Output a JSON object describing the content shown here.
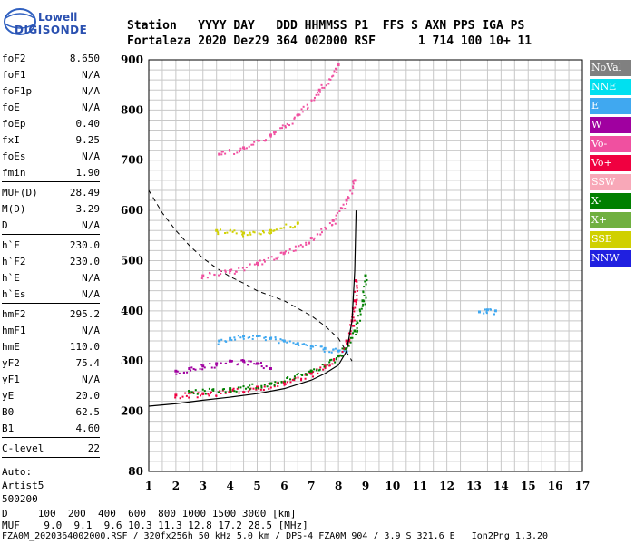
{
  "logo": {
    "brand_top": "Lowell",
    "brand_bottom": "DIGISONDE"
  },
  "header": {
    "labels": "Station   YYYY DAY   DDD HHMMSS P1  FFS S AXN PPS IGA PS",
    "values": "Fortaleza 2020 Dez29 364 002000 RSF      1 714 100 10+ 11"
  },
  "params": [
    [
      {
        "n": "foF2",
        "v": "8.650"
      },
      {
        "n": "foF1",
        "v": "N/A"
      },
      {
        "n": "foF1p",
        "v": "N/A"
      },
      {
        "n": "foE",
        "v": "N/A"
      },
      {
        "n": "foEp",
        "v": "0.40"
      },
      {
        "n": "fxI",
        "v": "9.25"
      },
      {
        "n": "foEs",
        "v": "N/A"
      },
      {
        "n": "fmin",
        "v": "1.90"
      }
    ],
    [
      {
        "n": "MUF(D)",
        "v": "28.49"
      },
      {
        "n": "M(D)",
        "v": "3.29"
      },
      {
        "n": "D",
        "v": "N/A"
      }
    ],
    [
      {
        "n": "h`F",
        "v": "230.0"
      },
      {
        "n": "h`F2",
        "v": "230.0"
      },
      {
        "n": "h`E",
        "v": "N/A"
      },
      {
        "n": "h`Es",
        "v": "N/A"
      }
    ],
    [
      {
        "n": "hmF2",
        "v": "295.2"
      },
      {
        "n": "hmF1",
        "v": "N/A"
      },
      {
        "n": "hmE",
        "v": "110.0"
      },
      {
        "n": "yF2",
        "v": "75.4"
      },
      {
        "n": "yF1",
        "v": "N/A"
      },
      {
        "n": "yE",
        "v": "20.0"
      },
      {
        "n": "B0",
        "v": "62.5"
      },
      {
        "n": "B1",
        "v": "4.60"
      }
    ],
    [
      {
        "n": "C-level",
        "v": "22"
      }
    ]
  ],
  "autoscale": [
    "Auto:",
    "Artist5",
    "500200"
  ],
  "legend": [
    {
      "label": "NoVal",
      "color": "#808080"
    },
    {
      "label": "NNE",
      "color": "#00e0f0"
    },
    {
      "label": "E",
      "color": "#40a8f0"
    },
    {
      "label": "W",
      "color": "#a000a0"
    },
    {
      "label": "Vo-",
      "color": "#f050a0"
    },
    {
      "label": "Vo+",
      "color": "#f00040"
    },
    {
      "label": "SSW",
      "color": "#f8a8b8"
    },
    {
      "label": "X-",
      "color": "#008000"
    },
    {
      "label": "X+",
      "color": "#70b040"
    },
    {
      "label": "SSE",
      "color": "#d0d000"
    },
    {
      "label": "NNW",
      "color": "#2020e0"
    }
  ],
  "footer": {
    "d_row": "D     100  200  400  600  800 1000 1500 3000 [km]",
    "muf_row": "MUF    9.0  9.1  9.6 10.3 11.3 12.8 17.2 28.5 [MHz]",
    "filename": "FZA0M_2020364002000.RSF / 320fx256h 50 kHz 5.0 km / DPS-4 FZA0M 904 / 3.9 S 321.6 E   Ion2Png 1.3.20"
  },
  "chart_data": {
    "type": "scatter",
    "xlim": [
      1,
      17
    ],
    "ylim": [
      80,
      900
    ],
    "x_ticks": [
      "1",
      "2",
      "3",
      "4",
      "5",
      "6",
      "7",
      "8",
      "9",
      "10",
      "11",
      "12",
      "13",
      "14",
      "15",
      "16",
      "17"
    ],
    "y_ticks": [
      "80",
      "200",
      "300",
      "400",
      "500",
      "600",
      "700",
      "800",
      "900"
    ],
    "grid": true,
    "traces": [
      {
        "name": "E",
        "x": [
          3.6,
          4.0,
          4.5,
          5.0,
          5.5,
          6.0,
          6.5,
          7.0,
          7.5,
          8.0,
          8.3
        ],
        "y": [
          340,
          345,
          350,
          350,
          345,
          340,
          335,
          330,
          325,
          320,
          318
        ]
      },
      {
        "name": "W",
        "x": [
          2.0,
          2.5,
          3.0,
          3.5,
          4.0,
          4.5,
          5.0,
          5.5
        ],
        "y": [
          280,
          285,
          290,
          295,
          300,
          300,
          295,
          285
        ]
      },
      {
        "name": "Vo+",
        "x": [
          2.0,
          3.0,
          4.0,
          5.0,
          6.0,
          7.0,
          7.5,
          8.0,
          8.3,
          8.5,
          8.6,
          8.65
        ],
        "y": [
          232,
          235,
          240,
          248,
          258,
          275,
          290,
          310,
          340,
          380,
          420,
          460
        ]
      },
      {
        "name": "X-",
        "x": [
          2.5,
          4.0,
          5.5,
          7.0,
          8.0,
          8.6,
          8.9,
          9.0
        ],
        "y": [
          238,
          245,
          255,
          280,
          310,
          360,
          420,
          470
        ]
      },
      {
        "name": "Vo-",
        "x": [
          3.0,
          4.0,
          5.0,
          6.0,
          7.0,
          7.8,
          8.3,
          8.6
        ],
        "y": [
          470,
          480,
          495,
          515,
          545,
          580,
          620,
          660
        ]
      },
      {
        "name": "SSE",
        "x": [
          3.5,
          4.5,
          5.5,
          6.5
        ],
        "y": [
          560,
          555,
          560,
          575
        ]
      },
      {
        "name": "Vo- (3-hop)",
        "x": [
          3.6,
          4.5,
          5.5,
          6.5,
          7.3,
          8.0
        ],
        "y": [
          712,
          725,
          750,
          790,
          840,
          890
        ]
      },
      {
        "name": "E (isolated)",
        "x": [
          13.2,
          13.5,
          13.8
        ],
        "y": [
          398,
          402,
          400
        ]
      }
    ],
    "profile": {
      "x": [
        1.0,
        2.0,
        3.0,
        4.0,
        5.0,
        6.0,
        7.0,
        7.5,
        8.0,
        8.3,
        8.5,
        8.6,
        8.65
      ],
      "y": [
        210,
        215,
        222,
        228,
        235,
        245,
        262,
        275,
        292,
        320,
        380,
        480,
        600
      ]
    },
    "muf_curve": {
      "x": [
        1.0,
        1.5,
        2.0,
        2.5,
        3.0,
        3.5,
        4.0,
        4.5,
        5.0,
        5.5,
        6.0,
        6.5,
        7.0,
        7.5,
        8.0,
        8.5
      ],
      "y": [
        640,
        595,
        560,
        530,
        505,
        485,
        468,
        455,
        440,
        430,
        420,
        405,
        390,
        370,
        345,
        300
      ]
    }
  }
}
